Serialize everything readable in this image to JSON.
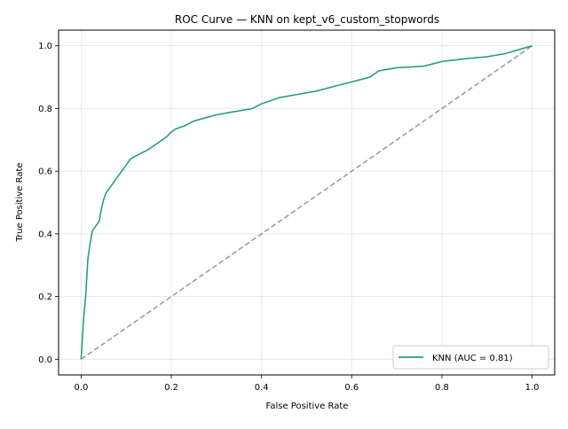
{
  "chart_data": {
    "type": "line",
    "title": "ROC Curve — KNN on kept_v6_custom_stopwords",
    "xlabel": "False Positive Rate",
    "ylabel": "True Positive Rate",
    "xlim": [
      -0.05,
      1.05
    ],
    "ylim": [
      -0.05,
      1.05
    ],
    "xticks": [
      "0.0",
      "0.2",
      "0.4",
      "0.6",
      "0.8",
      "1.0"
    ],
    "yticks": [
      "0.0",
      "0.2",
      "0.4",
      "0.6",
      "0.8",
      "1.0"
    ],
    "grid": true,
    "legend_position": "lower-right",
    "series": [
      {
        "name": "KNN (AUC = 0.81)",
        "color": "#2a9d7e",
        "x": [
          0.0,
          0.005,
          0.01,
          0.012,
          0.015,
          0.02,
          0.025,
          0.03,
          0.04,
          0.045,
          0.05,
          0.055,
          0.06,
          0.07,
          0.08,
          0.09,
          0.1,
          0.11,
          0.13,
          0.15,
          0.17,
          0.19,
          0.2,
          0.21,
          0.23,
          0.25,
          0.28,
          0.3,
          0.34,
          0.38,
          0.4,
          0.44,
          0.48,
          0.52,
          0.56,
          0.6,
          0.64,
          0.66,
          0.7,
          0.76,
          0.8,
          0.86,
          0.9,
          0.94,
          1.0
        ],
        "y": [
          0.0,
          0.12,
          0.2,
          0.25,
          0.32,
          0.37,
          0.41,
          0.42,
          0.44,
          0.48,
          0.51,
          0.53,
          0.54,
          0.56,
          0.58,
          0.6,
          0.62,
          0.64,
          0.655,
          0.67,
          0.69,
          0.71,
          0.725,
          0.735,
          0.745,
          0.76,
          0.772,
          0.78,
          0.79,
          0.8,
          0.815,
          0.835,
          0.845,
          0.855,
          0.87,
          0.885,
          0.9,
          0.92,
          0.93,
          0.935,
          0.95,
          0.96,
          0.965,
          0.975,
          1.0
        ]
      },
      {
        "name": "",
        "color": "#999999",
        "dashed": true,
        "x": [
          0.0,
          1.0
        ],
        "y": [
          0.0,
          1.0
        ]
      }
    ]
  }
}
